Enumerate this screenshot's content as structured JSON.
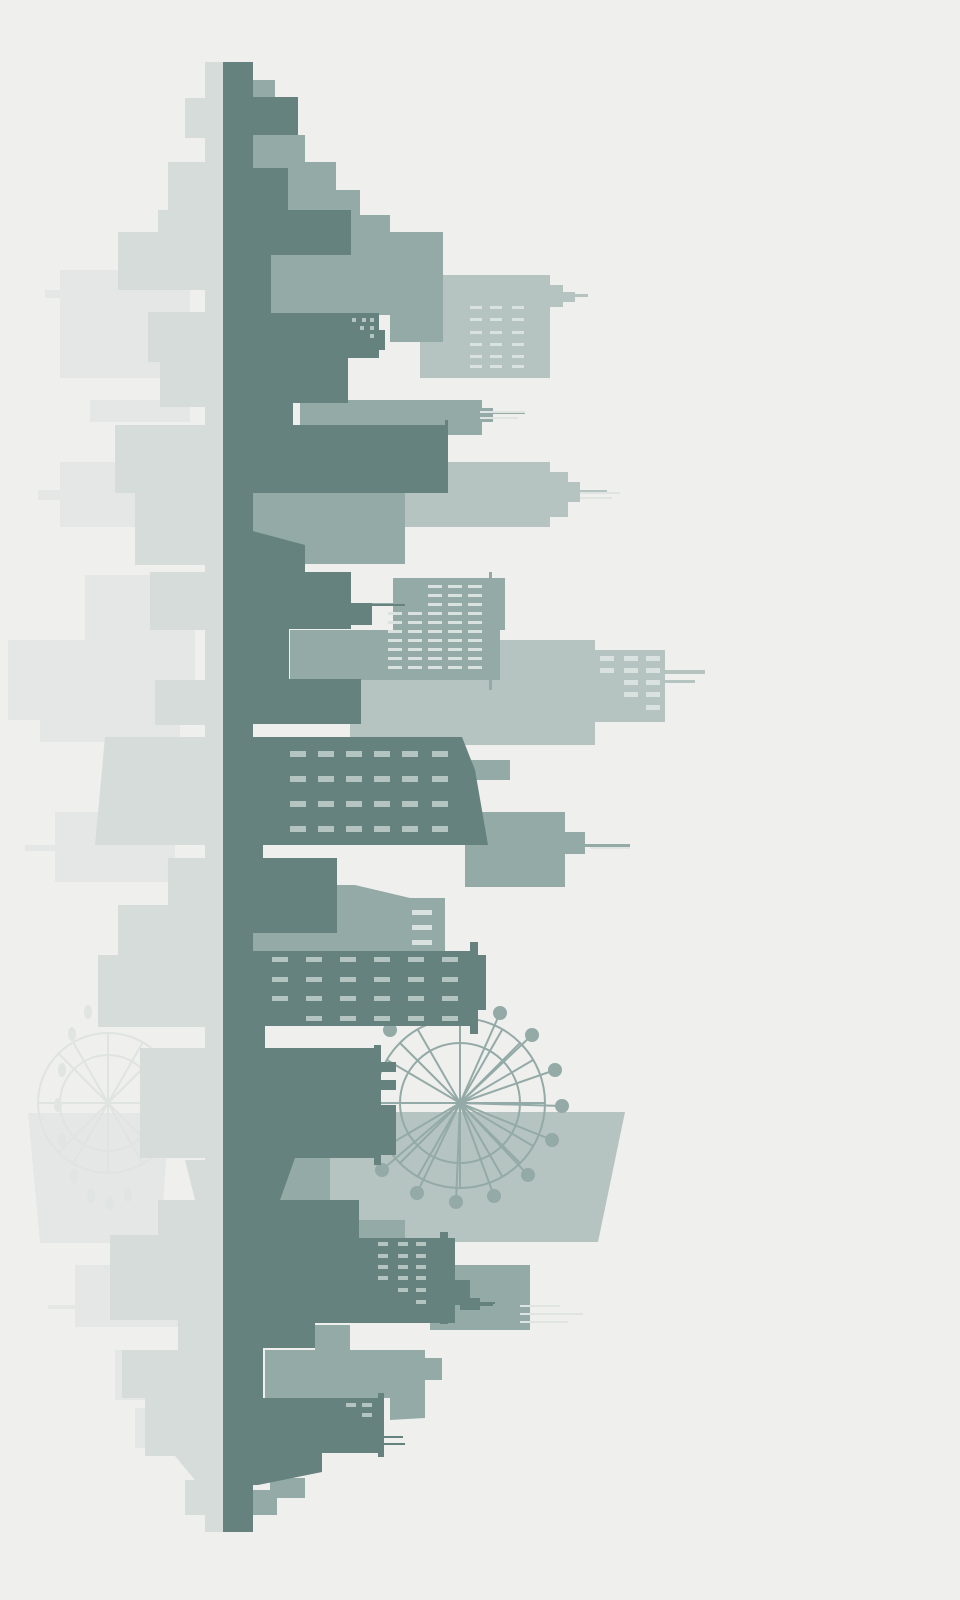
{
  "scene": {
    "subject": "vertical-city-skyline",
    "orientation": "rotated-90-degrees",
    "colors": {
      "background": "#efefee",
      "far": "#e4e7e5",
      "back": "#d5dcda",
      "mid": "#b6c4c1",
      "light": "#93aaa6",
      "dark": "#65827e",
      "window": "#b4c5c1"
    },
    "icons": [
      "ferris-wheel-icon",
      "building-icon",
      "antenna-icon"
    ]
  }
}
